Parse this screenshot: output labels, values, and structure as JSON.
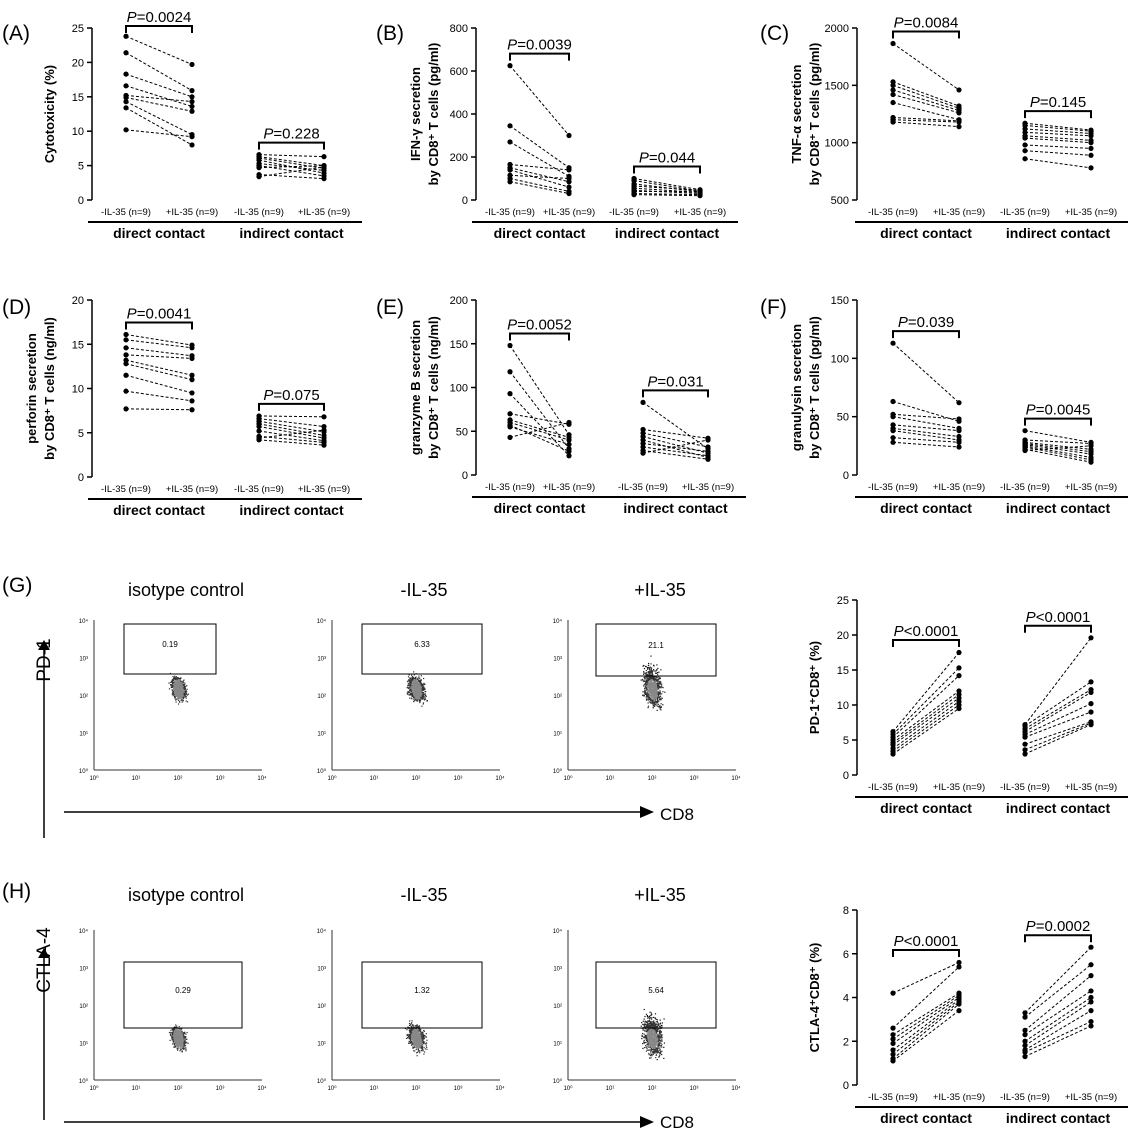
{
  "chart_data": [
    {
      "panel": "(A)",
      "type": "paired-dot",
      "ylabel": "Cytotoxicity (%)",
      "yticks": [
        0,
        5,
        10,
        15,
        20,
        25
      ],
      "ylim": [
        0,
        25
      ],
      "group_labels": [
        "direct contact",
        "indirect contact"
      ],
      "x_labels": [
        "-IL-35 (n=9)",
        "+IL-35 (n=9)",
        "-IL-35 (n=9)",
        "+IL-35 (n=9)"
      ],
      "pvalues": [
        "P=0.0024",
        "P=0.228"
      ],
      "pairs": [
        [
          [
            23.8,
            19.7
          ],
          [
            21.4,
            15.9
          ],
          [
            18.3,
            15.0
          ],
          [
            16.6,
            13.6
          ],
          [
            15.2,
            14.3
          ],
          [
            14.9,
            12.9
          ],
          [
            14.3,
            9.5
          ],
          [
            13.4,
            8.0
          ],
          [
            10.2,
            9.2
          ]
        ],
        [
          [
            6.6,
            6.3
          ],
          [
            6.3,
            5.0
          ],
          [
            6.1,
            4.6
          ],
          [
            5.8,
            3.9
          ],
          [
            5.3,
            4.3
          ],
          [
            5.0,
            3.5
          ],
          [
            4.7,
            5.0
          ],
          [
            3.7,
            3.1
          ],
          [
            3.4,
            4.8
          ]
        ]
      ]
    },
    {
      "panel": "(B)",
      "type": "paired-dot",
      "ylabel": [
        "IFN-γ secretion",
        "by CD8⁺ T cells (pg/ml)"
      ],
      "yticks": [
        0,
        200,
        400,
        600,
        800
      ],
      "ylim": [
        0,
        800
      ],
      "group_labels": [
        "direct contact",
        "indirect contact"
      ],
      "x_labels": [
        "-IL-35 (n=9)",
        "+IL-35 (n=9)",
        "-IL-35 (n=9)",
        "+IL-35 (n=9)"
      ],
      "pvalues": [
        "P=0.0039",
        "P=0.044"
      ],
      "pairs": [
        [
          [
            625,
            300
          ],
          [
            345,
            150
          ],
          [
            270,
            110
          ],
          [
            165,
            140
          ],
          [
            150,
            85
          ],
          [
            140,
            60
          ],
          [
            115,
            100
          ],
          [
            100,
            40
          ],
          [
            85,
            30
          ]
        ],
        [
          [
            100,
            48
          ],
          [
            90,
            42
          ],
          [
            75,
            38
          ],
          [
            65,
            45
          ],
          [
            55,
            35
          ],
          [
            45,
            30
          ],
          [
            40,
            38
          ],
          [
            30,
            25
          ],
          [
            25,
            20
          ]
        ]
      ]
    },
    {
      "panel": "(C)",
      "type": "paired-dot",
      "ylabel": [
        "TNF-α secretion",
        "by CD8⁺ T cells (pg/ml)"
      ],
      "yticks": [
        500,
        1000,
        1500,
        2000
      ],
      "ylim": [
        500,
        2000
      ],
      "group_labels": [
        "direct contact",
        "indirect contact"
      ],
      "x_labels": [
        "-IL-35 (n=9)",
        "+IL-35 (n=9)",
        "-IL-35 (n=9)",
        "+IL-35 (n=9)"
      ],
      "pvalues": [
        "P=0.0084",
        "P=0.145"
      ],
      "pairs": [
        [
          [
            1865,
            1460
          ],
          [
            1530,
            1320
          ],
          [
            1500,
            1300
          ],
          [
            1460,
            1280
          ],
          [
            1420,
            1260
          ],
          [
            1350,
            1200
          ],
          [
            1220,
            1190
          ],
          [
            1200,
            1180
          ],
          [
            1180,
            1140
          ]
        ],
        [
          [
            1170,
            1110
          ],
          [
            1150,
            1100
          ],
          [
            1120,
            1080
          ],
          [
            1090,
            1060
          ],
          [
            1060,
            1020
          ],
          [
            1040,
            1000
          ],
          [
            980,
            950
          ],
          [
            930,
            890
          ],
          [
            860,
            780
          ]
        ]
      ]
    },
    {
      "panel": "(D)",
      "type": "paired-dot",
      "ylabel": [
        "perforin secretion",
        "by CD8⁺ T cells (ng/ml)"
      ],
      "yticks": [
        0,
        5,
        10,
        15,
        20
      ],
      "ylim": [
        0,
        20
      ],
      "group_labels": [
        "direct contact",
        "indirect contact"
      ],
      "x_labels": [
        "-IL-35 (n=9)",
        "+IL-35 (n=9)",
        "-IL-35 (n=9)",
        "+IL-35 (n=9)"
      ],
      "pvalues": [
        "P=0.0041",
        "P=0.075"
      ],
      "pairs": [
        [
          [
            16.1,
            14.9
          ],
          [
            15.5,
            14.6
          ],
          [
            14.6,
            13.7
          ],
          [
            13.8,
            13.4
          ],
          [
            13.2,
            11.5
          ],
          [
            12.8,
            11.0
          ],
          [
            11.5,
            9.5
          ],
          [
            9.7,
            8.6
          ],
          [
            7.7,
            7.6
          ]
        ],
        [
          [
            6.9,
            6.8
          ],
          [
            6.6,
            5.7
          ],
          [
            6.3,
            5.1
          ],
          [
            6.0,
            4.7
          ],
          [
            5.7,
            4.4
          ],
          [
            5.2,
            4.1
          ],
          [
            4.6,
            3.9
          ],
          [
            4.4,
            5.3
          ],
          [
            4.2,
            3.6
          ]
        ]
      ]
    },
    {
      "panel": "(E)",
      "type": "paired-dot",
      "ylabel": [
        "granzyme B secretion",
        "by CD8⁺ T cells (ng/ml)"
      ],
      "yticks": [
        0,
        50,
        100,
        150,
        200
      ],
      "ylim": [
        0,
        200
      ],
      "group_labels": [
        "direct contact",
        "indirect contact"
      ],
      "x_labels": [
        "-IL-35 (n=9)",
        "+IL-35 (n=9)",
        "-IL-35 (n=9)",
        "+IL-35 (n=9)"
      ],
      "pvalues": [
        "P=0.0052",
        "P=0.031"
      ],
      "pairs": [
        [
          [
            148,
            46
          ],
          [
            118,
            30
          ],
          [
            93,
            22
          ],
          [
            70,
            58
          ],
          [
            63,
            43
          ],
          [
            60,
            40
          ],
          [
            57,
            27
          ],
          [
            55,
            35
          ],
          [
            43,
            60
          ]
        ],
        [
          [
            83,
            30
          ],
          [
            52,
            42
          ],
          [
            48,
            32
          ],
          [
            44,
            25
          ],
          [
            40,
            20
          ],
          [
            36,
            27
          ],
          [
            32,
            22
          ],
          [
            28,
            18
          ],
          [
            25,
            40
          ]
        ]
      ]
    },
    {
      "panel": "(F)",
      "type": "paired-dot",
      "ylabel": [
        "granulysin secretion",
        "by CD8⁺ T cells (pg/ml)"
      ],
      "yticks": [
        0,
        50,
        100,
        150
      ],
      "ylim": [
        0,
        150
      ],
      "group_labels": [
        "direct contact",
        "indirect contact"
      ],
      "x_labels": [
        "-IL-35 (n=9)",
        "+IL-35 (n=9)",
        "-IL-35 (n=9)",
        "+IL-35 (n=9)"
      ],
      "pvalues": [
        "P=0.039",
        "P=0.0045"
      ],
      "pairs": [
        [
          [
            113,
            62
          ],
          [
            63,
            46
          ],
          [
            52,
            48
          ],
          [
            50,
            40
          ],
          [
            43,
            38
          ],
          [
            40,
            33
          ],
          [
            38,
            30
          ],
          [
            32,
            28
          ],
          [
            28,
            24
          ]
        ],
        [
          [
            38,
            28
          ],
          [
            30,
            27
          ],
          [
            28,
            22
          ],
          [
            27,
            20
          ],
          [
            26,
            18
          ],
          [
            25,
            15
          ],
          [
            24,
            13
          ],
          [
            22,
            11
          ],
          [
            21,
            25
          ]
        ]
      ]
    },
    {
      "panel": "",
      "type": "paired-dot",
      "ylabel": "PD-1⁺CD8⁺ (%)",
      "yticks": [
        0,
        5,
        10,
        15,
        20,
        25
      ],
      "ylim": [
        0,
        25
      ],
      "group_labels": [
        "direct contact",
        "indirect contact"
      ],
      "x_labels": [
        "-IL-35 (n=9)",
        "+IL-35 (n=9)",
        "-IL-35 (n=9)",
        "+IL-35 (n=9)"
      ],
      "pvalues": [
        "P<0.0001",
        "P<0.0001"
      ],
      "pairs": [
        [
          [
            6.2,
            17.5
          ],
          [
            5.8,
            15.3
          ],
          [
            5.4,
            14.2
          ],
          [
            5.0,
            12.0
          ],
          [
            4.6,
            11.5
          ],
          [
            4.3,
            11.0
          ],
          [
            3.8,
            10.5
          ],
          [
            3.4,
            10.0
          ],
          [
            3.0,
            9.5
          ]
        ],
        [
          [
            7.2,
            19.6
          ],
          [
            7.0,
            13.3
          ],
          [
            6.6,
            12.2
          ],
          [
            6.2,
            11.8
          ],
          [
            5.8,
            10.2
          ],
          [
            5.4,
            9.0
          ],
          [
            4.4,
            7.6
          ],
          [
            3.6,
            7.4
          ],
          [
            3.0,
            7.2
          ]
        ]
      ]
    },
    {
      "panel": "",
      "type": "paired-dot",
      "ylabel": "CTLA-4⁺CD8⁺ (%)",
      "yticks": [
        0,
        2,
        4,
        6,
        8
      ],
      "ylim": [
        0,
        8
      ],
      "group_labels": [
        "direct contact",
        "indirect contact"
      ],
      "x_labels": [
        "-IL-35 (n=9)",
        "+IL-35 (n=9)",
        "-IL-35 (n=9)",
        "+IL-35 (n=9)"
      ],
      "pvalues": [
        "P<0.0001",
        "P=0.0002"
      ],
      "pairs": [
        [
          [
            4.2,
            5.6
          ],
          [
            2.6,
            5.4
          ],
          [
            2.3,
            4.2
          ],
          [
            2.1,
            4.1
          ],
          [
            1.9,
            4.0
          ],
          [
            1.6,
            3.9
          ],
          [
            1.4,
            3.8
          ],
          [
            1.2,
            3.7
          ],
          [
            1.1,
            3.4
          ]
        ],
        [
          [
            3.3,
            6.3
          ],
          [
            3.1,
            5.5
          ],
          [
            2.5,
            5.0
          ],
          [
            2.3,
            4.3
          ],
          [
            2.0,
            4.0
          ],
          [
            1.8,
            3.8
          ],
          [
            1.6,
            3.4
          ],
          [
            1.5,
            2.9
          ],
          [
            1.3,
            2.7
          ]
        ]
      ]
    }
  ],
  "flow_panels": [
    {
      "panel": "(G)",
      "ylabel": "PD-1",
      "xlabel": "CD8",
      "titles": [
        "isotype control",
        "-IL-35",
        "+IL-35"
      ],
      "gate_values": [
        "0.19",
        "6.33",
        "21.1"
      ],
      "tick_labels": [
        "10⁰",
        "10¹",
        "10²",
        "10³",
        "10⁴"
      ]
    },
    {
      "panel": "(H)",
      "ylabel": "CTLA-4",
      "xlabel": "CD8",
      "titles": [
        "isotype control",
        "-IL-35",
        "+IL-35"
      ],
      "gate_values": [
        "0.29",
        "1.32",
        "5.64"
      ],
      "tick_labels": [
        "10⁰",
        "10¹",
        "10²",
        "10³",
        "10⁴"
      ]
    }
  ]
}
